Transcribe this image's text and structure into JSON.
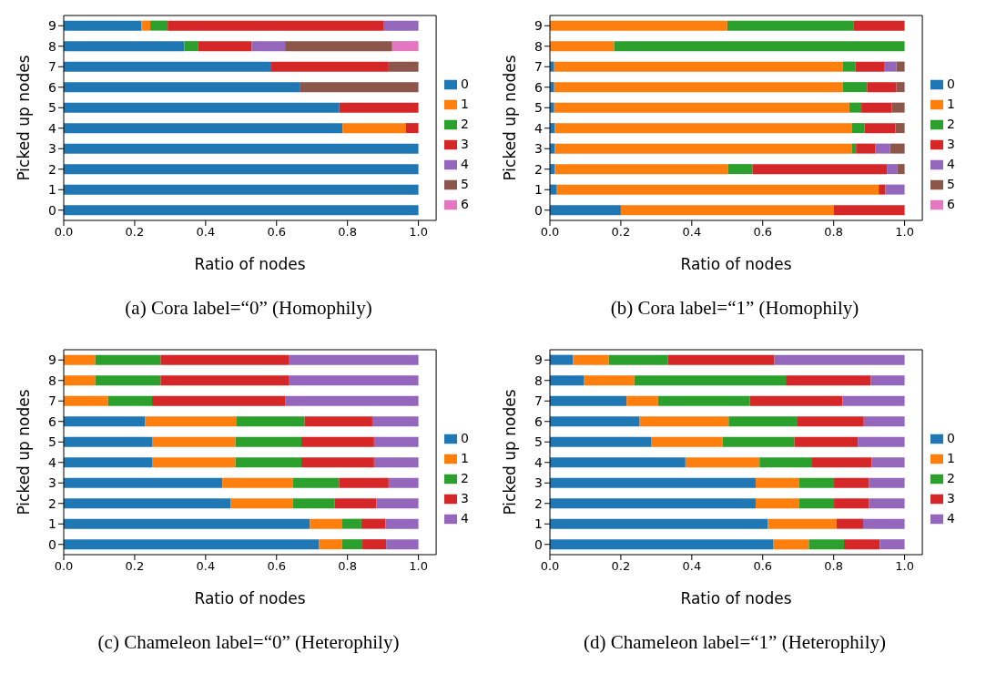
{
  "chart_data": [
    {
      "type": "bar",
      "orientation": "horizontal",
      "stacked": true,
      "title": "(a) Cora label=“0” (Homophily)",
      "xlabel": "Ratio of nodes",
      "ylabel": "Picked up nodes",
      "categories": [
        "9",
        "8",
        "7",
        "6",
        "5",
        "4",
        "3",
        "2",
        "1",
        "0"
      ],
      "xlim": [
        0,
        1.05
      ],
      "xticks": [
        {
          "value": 0,
          "label": "0.0"
        },
        {
          "value": 0.2,
          "label": "0.2"
        },
        {
          "value": 0.4,
          "label": "0.4"
        },
        {
          "value": 0.6,
          "label": "0.6"
        },
        {
          "value": 0.8,
          "label": "0.8"
        },
        {
          "value": 1,
          "label": "1.0"
        }
      ],
      "legend": "right",
      "grid": false,
      "series": [
        {
          "name": "0",
          "color": "#1f77b4",
          "values": [
            0.219,
            0.34,
            0.583,
            0.667,
            0.777,
            0.786,
            1,
            1,
            1,
            1
          ]
        },
        {
          "name": "1",
          "color": "#ff7f0e",
          "values": [
            0.025,
            0,
            0,
            0,
            0,
            0.178,
            0,
            0,
            0,
            0
          ]
        },
        {
          "name": "2",
          "color": "#2ca02c",
          "values": [
            0.049,
            0.038,
            0,
            0,
            0,
            0,
            0,
            0,
            0,
            0
          ]
        },
        {
          "name": "3",
          "color": "#d62728",
          "values": [
            0.608,
            0.152,
            0.333,
            0,
            0.223,
            0.036,
            0,
            0,
            0,
            0
          ]
        },
        {
          "name": "4",
          "color": "#9467bd",
          "values": [
            0.099,
            0.094,
            0,
            0,
            0,
            0,
            0,
            0,
            0,
            0
          ]
        },
        {
          "name": "5",
          "color": "#8c564b",
          "values": [
            0,
            0.302,
            0.084,
            0.333,
            0,
            0,
            0,
            0,
            0,
            0
          ]
        },
        {
          "name": "6",
          "color": "#e377c2",
          "values": [
            0,
            0.074,
            0,
            0,
            0,
            0,
            0,
            0,
            0,
            0
          ]
        }
      ]
    },
    {
      "type": "bar",
      "orientation": "horizontal",
      "stacked": true,
      "title": "(b) Cora label=“1” (Homophily)",
      "xlabel": "Ratio of nodes",
      "ylabel": "Picked up nodes",
      "categories": [
        "9",
        "8",
        "7",
        "6",
        "5",
        "4",
        "3",
        "2",
        "1",
        "0"
      ],
      "xlim": [
        0,
        1.05
      ],
      "xticks": [
        {
          "value": 0,
          "label": "0.0"
        },
        {
          "value": 0.2,
          "label": "0.2"
        },
        {
          "value": 0.4,
          "label": "0.4"
        },
        {
          "value": 0.6,
          "label": "0.6"
        },
        {
          "value": 0.8,
          "label": "0.8"
        },
        {
          "value": 1,
          "label": "1.0"
        }
      ],
      "legend": "right",
      "grid": false,
      "series": [
        {
          "name": "0",
          "color": "#1f77b4",
          "values": [
            0,
            0,
            0.012,
            0.012,
            0.012,
            0.014,
            0.014,
            0.014,
            0.018,
            0.2
          ]
        },
        {
          "name": "1",
          "color": "#ff7f0e",
          "values": [
            0.5,
            0.181,
            0.814,
            0.814,
            0.832,
            0.838,
            0.837,
            0.488,
            0.909,
            0.6
          ]
        },
        {
          "name": "2",
          "color": "#2ca02c",
          "values": [
            0.357,
            0.819,
            0.035,
            0.068,
            0.034,
            0.035,
            0.012,
            0.069,
            0,
            0
          ]
        },
        {
          "name": "3",
          "color": "#d62728",
          "values": [
            0.143,
            0,
            0.081,
            0.083,
            0.086,
            0.087,
            0.055,
            0.379,
            0.019,
            0.2
          ]
        },
        {
          "name": "4",
          "color": "#9467bd",
          "values": [
            0,
            0,
            0.035,
            0,
            0,
            0,
            0.041,
            0.029,
            0.054,
            0
          ]
        },
        {
          "name": "5",
          "color": "#8c564b",
          "values": [
            0,
            0,
            0.023,
            0.023,
            0.036,
            0.026,
            0.041,
            0.021,
            0,
            0
          ]
        },
        {
          "name": "6",
          "color": "#e377c2",
          "values": [
            0,
            0,
            0,
            0,
            0,
            0,
            0,
            0,
            0,
            0
          ]
        }
      ]
    },
    {
      "type": "bar",
      "orientation": "horizontal",
      "stacked": true,
      "title": "(c) Chameleon label=“0” (Heterophily)",
      "xlabel": "Ratio of nodes",
      "ylabel": "Picked up nodes",
      "categories": [
        "9",
        "8",
        "7",
        "6",
        "5",
        "4",
        "3",
        "2",
        "1",
        "0"
      ],
      "xlim": [
        0,
        1.05
      ],
      "xticks": [
        {
          "value": 0,
          "label": "0.0"
        },
        {
          "value": 0.2,
          "label": "0.2"
        },
        {
          "value": 0.4,
          "label": "0.4"
        },
        {
          "value": 0.6,
          "label": "0.6"
        },
        {
          "value": 0.8,
          "label": "0.8"
        },
        {
          "value": 1,
          "label": "1.0"
        }
      ],
      "legend": "right",
      "grid": false,
      "series": [
        {
          "name": "0",
          "color": "#1f77b4",
          "values": [
            0,
            0,
            0,
            0.229,
            0.249,
            0.249,
            0.447,
            0.471,
            0.694,
            0.72
          ]
        },
        {
          "name": "1",
          "color": "#ff7f0e",
          "values": [
            0.089,
            0.089,
            0.125,
            0.257,
            0.235,
            0.235,
            0.199,
            0.175,
            0.09,
            0.065
          ]
        },
        {
          "name": "2",
          "color": "#2ca02c",
          "values": [
            0.184,
            0.184,
            0.124,
            0.193,
            0.186,
            0.186,
            0.13,
            0.118,
            0.055,
            0.057
          ]
        },
        {
          "name": "3",
          "color": "#d62728",
          "values": [
            0.361,
            0.361,
            0.375,
            0.191,
            0.205,
            0.205,
            0.14,
            0.117,
            0.068,
            0.067
          ]
        },
        {
          "name": "4",
          "color": "#9467bd",
          "values": [
            0.366,
            0.366,
            0.376,
            0.13,
            0.125,
            0.125,
            0.084,
            0.119,
            0.093,
            0.091
          ]
        }
      ]
    },
    {
      "type": "bar",
      "orientation": "horizontal",
      "stacked": true,
      "title": "(d) Chameleon label=“1” (Heterophily)",
      "xlabel": "Ratio of nodes",
      "ylabel": "Picked up nodes",
      "categories": [
        "9",
        "8",
        "7",
        "6",
        "5",
        "4",
        "3",
        "2",
        "1",
        "0"
      ],
      "xlim": [
        0,
        1.05
      ],
      "xticks": [
        {
          "value": 0,
          "label": "0.0"
        },
        {
          "value": 0.2,
          "label": "0.2"
        },
        {
          "value": 0.4,
          "label": "0.4"
        },
        {
          "value": 0.6,
          "label": "0.6"
        },
        {
          "value": 0.8,
          "label": "0.8"
        },
        {
          "value": 1,
          "label": "1.0"
        }
      ],
      "legend": "right",
      "grid": false,
      "series": [
        {
          "name": "0",
          "color": "#1f77b4",
          "values": [
            0.065,
            0.095,
            0.216,
            0.253,
            0.285,
            0.382,
            0.58,
            0.58,
            0.614,
            0.629
          ]
        },
        {
          "name": "1",
          "color": "#ff7f0e",
          "values": [
            0.101,
            0.143,
            0.089,
            0.251,
            0.202,
            0.209,
            0.122,
            0.122,
            0.194,
            0.101
          ]
        },
        {
          "name": "2",
          "color": "#2ca02c",
          "values": [
            0.166,
            0.427,
            0.259,
            0.192,
            0.202,
            0.146,
            0.099,
            0.099,
            0,
            0.099
          ]
        },
        {
          "name": "3",
          "color": "#d62728",
          "values": [
            0.301,
            0.24,
            0.261,
            0.189,
            0.179,
            0.17,
            0.099,
            0.099,
            0.075,
            0.101
          ]
        },
        {
          "name": "4",
          "color": "#9467bd",
          "values": [
            0.367,
            0.095,
            0.175,
            0.115,
            0.132,
            0.093,
            0.1,
            0.1,
            0.117,
            0.07
          ]
        }
      ]
    }
  ]
}
